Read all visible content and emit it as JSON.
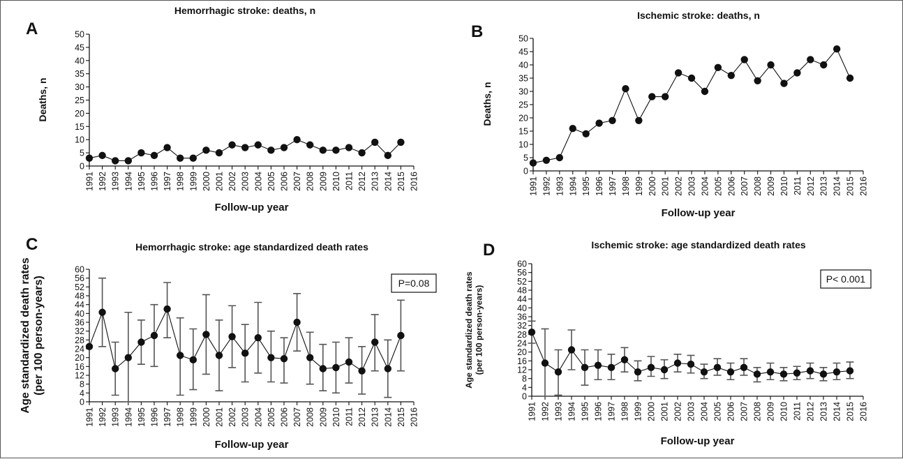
{
  "chart_data": [
    {
      "panel": "A",
      "type": "line",
      "title": "Hemorrhagic stroke: deaths, n",
      "xlabel": "Follow-up year",
      "ylabel": "Deaths, n",
      "ylim": [
        0,
        50
      ],
      "yticks": [
        0,
        5,
        10,
        15,
        20,
        25,
        30,
        35,
        40,
        45,
        50
      ],
      "xticks": [
        1991,
        1992,
        1993,
        1994,
        1995,
        1996,
        1997,
        1998,
        1999,
        2000,
        2001,
        2002,
        2003,
        2004,
        2005,
        2006,
        2007,
        2008,
        2009,
        2010,
        2011,
        2012,
        2013,
        2014,
        2015,
        2016
      ],
      "x": [
        1991,
        1992,
        1993,
        1994,
        1995,
        1996,
        1997,
        1998,
        1999,
        2000,
        2001,
        2002,
        2003,
        2004,
        2005,
        2006,
        2007,
        2008,
        2009,
        2010,
        2011,
        2012,
        2013,
        2014,
        2015
      ],
      "values": [
        3,
        4,
        2,
        2,
        5,
        4,
        7,
        3,
        3,
        6,
        5,
        8,
        7,
        8,
        6,
        7,
        10,
        8,
        6,
        6,
        7,
        5,
        9,
        4,
        9
      ],
      "grid": false,
      "annotation": ""
    },
    {
      "panel": "B",
      "type": "line",
      "title": "Ischemic stroke: deaths, n",
      "xlabel": "Follow-up year",
      "ylabel": "Deaths, n",
      "ylim": [
        0,
        50
      ],
      "yticks": [
        0,
        5,
        10,
        15,
        20,
        25,
        30,
        35,
        40,
        45,
        50
      ],
      "xticks": [
        1991,
        1992,
        1993,
        1994,
        1995,
        1996,
        1997,
        1998,
        1999,
        2000,
        2001,
        2002,
        2003,
        2004,
        2005,
        2006,
        2007,
        2008,
        2009,
        2010,
        2011,
        2012,
        2013,
        2014,
        2015,
        2016
      ],
      "x": [
        1991,
        1992,
        1993,
        1994,
        1995,
        1996,
        1997,
        1998,
        1999,
        2000,
        2001,
        2002,
        2003,
        2004,
        2005,
        2006,
        2007,
        2008,
        2009,
        2010,
        2011,
        2012,
        2013,
        2014,
        2015
      ],
      "values": [
        3,
        4,
        5,
        16,
        14,
        18,
        19,
        31,
        19,
        28,
        28,
        37,
        35,
        30,
        39,
        36,
        42,
        34,
        40,
        33,
        37,
        42,
        40,
        46,
        35
      ],
      "grid": false,
      "annotation": ""
    },
    {
      "panel": "C",
      "type": "line",
      "title": "Hemorrhagic stroke: age standardized death rates",
      "xlabel": "Follow-up year",
      "ylabel": [
        "Age standardized death rates",
        "(per 100 person-years)"
      ],
      "ylim": [
        0,
        60
      ],
      "yticks": [
        0,
        4,
        8,
        12,
        16,
        20,
        24,
        28,
        32,
        36,
        40,
        44,
        48,
        52,
        56,
        60
      ],
      "xticks": [
        1991,
        1992,
        1993,
        1994,
        1995,
        1996,
        1997,
        1998,
        1999,
        2000,
        2001,
        2002,
        2003,
        2004,
        2005,
        2006,
        2007,
        2008,
        2009,
        2010,
        2011,
        2012,
        2013,
        2014,
        2015,
        2016
      ],
      "x": [
        1991,
        1992,
        1993,
        1994,
        1995,
        1996,
        1997,
        1998,
        1999,
        2000,
        2001,
        2002,
        2003,
        2004,
        2005,
        2006,
        2007,
        2008,
        2009,
        2010,
        2011,
        2012,
        2013,
        2014,
        2015
      ],
      "values": [
        25,
        40.5,
        15,
        20,
        27,
        30,
        42,
        21,
        19,
        30.5,
        21,
        29.5,
        22,
        29,
        20,
        19.5,
        36,
        20,
        15,
        15.5,
        18,
        14,
        27,
        15,
        30
      ],
      "error_lower": [
        null,
        25,
        3,
        0,
        17,
        16,
        29,
        3,
        5.5,
        12.5,
        5,
        15.5,
        9,
        13,
        9,
        8.5,
        23,
        8,
        5,
        4,
        8.5,
        3.5,
        14,
        2,
        14
      ],
      "error_upper": [
        null,
        56,
        27,
        40.5,
        37,
        44,
        54,
        38,
        33,
        48.5,
        37,
        43.5,
        35,
        45,
        32,
        29,
        49,
        31.5,
        26,
        27,
        29,
        25,
        39.5,
        28,
        46
      ],
      "grid": false,
      "annotation": "P=0.08"
    },
    {
      "panel": "D",
      "type": "line",
      "title": "Ischemic stroke: age standardized death rates",
      "xlabel": "Follow-up year",
      "ylabel": [
        "Age standardized death rates",
        "(per 100 person-years)"
      ],
      "ylim": [
        0,
        60
      ],
      "yticks": [
        0,
        4,
        8,
        12,
        16,
        20,
        24,
        28,
        32,
        36,
        40,
        44,
        48,
        52,
        56,
        60
      ],
      "xticks": [
        1991,
        1992,
        1993,
        1994,
        1995,
        1996,
        1997,
        1998,
        1999,
        2000,
        2001,
        2002,
        2003,
        2004,
        2005,
        2006,
        2007,
        2008,
        2009,
        2010,
        2011,
        2012,
        2013,
        2014,
        2015,
        2016
      ],
      "x": [
        1991,
        1992,
        1993,
        1994,
        1995,
        1996,
        1997,
        1998,
        1999,
        2000,
        2001,
        2002,
        2003,
        2004,
        2005,
        2006,
        2007,
        2008,
        2009,
        2010,
        2011,
        2012,
        2013,
        2014,
        2015
      ],
      "values": [
        29,
        15,
        11,
        21,
        13,
        14,
        13,
        16.5,
        11,
        13,
        12,
        15,
        14.5,
        11,
        13,
        11,
        13,
        10,
        11,
        10,
        10.5,
        11.5,
        10,
        11,
        11.5
      ],
      "error_lower": [
        24,
        0,
        0.5,
        12,
        5,
        7.5,
        7.5,
        11,
        7,
        9,
        8,
        11,
        10.5,
        8,
        9.5,
        7.5,
        9.5,
        6.5,
        7.5,
        7,
        7.5,
        8,
        7,
        7.5,
        8
      ],
      "error_upper": [
        34,
        30.5,
        21,
        30,
        21,
        21,
        19,
        22,
        16,
        18,
        16.5,
        19,
        18.5,
        14.5,
        17,
        15,
        17,
        13,
        15,
        13,
        13.5,
        15,
        13,
        15,
        15.5
      ],
      "grid": false,
      "annotation": "P< 0.001"
    }
  ]
}
